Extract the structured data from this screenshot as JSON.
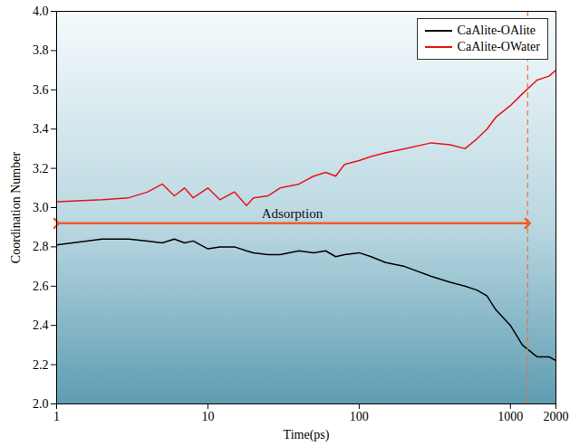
{
  "chart_data": {
    "type": "line",
    "x_label": "Time(ps)",
    "y_label": "Coordination Number",
    "log": "x",
    "xlim": [
      1,
      2000
    ],
    "xticks": [
      1,
      10,
      100,
      1000,
      2000
    ],
    "ylim": [
      2,
      4
    ],
    "yticks": [
      {
        "value": 2,
        "label": "2.0"
      },
      {
        "value": 2.2,
        "label": "2.2"
      },
      {
        "value": 2.4,
        "label": "2.4"
      },
      {
        "value": 2.6,
        "label": "2.6"
      },
      {
        "value": 2.8,
        "label": "2.8"
      },
      {
        "value": 3,
        "label": "3.0"
      },
      {
        "value": 3.2,
        "label": "3.2"
      },
      {
        "value": 3.4,
        "label": "3.4"
      },
      {
        "value": 3.6,
        "label": "3.6"
      },
      {
        "value": 3.8,
        "label": "3.8"
      },
      {
        "value": 4,
        "label": "4.0"
      }
    ],
    "legend": "top-right",
    "x": [
      1,
      2,
      3,
      4,
      5,
      6,
      7,
      8,
      10,
      12,
      15,
      18,
      20,
      25,
      30,
      40,
      50,
      60,
      70,
      80,
      100,
      120,
      150,
      200,
      300,
      400,
      500,
      600,
      700,
      800,
      1000,
      1200,
      1500,
      1800,
      2000
    ],
    "series": [
      {
        "name": "CaAlite-OAlite",
        "color": "#000000",
        "values": [
          2.81,
          2.84,
          2.84,
          2.83,
          2.82,
          2.84,
          2.82,
          2.83,
          2.79,
          2.8,
          2.8,
          2.78,
          2.77,
          2.76,
          2.76,
          2.78,
          2.77,
          2.78,
          2.75,
          2.76,
          2.77,
          2.75,
          2.72,
          2.7,
          2.65,
          2.62,
          2.6,
          2.58,
          2.55,
          2.48,
          2.4,
          2.3,
          2.24,
          2.24,
          2.22
        ]
      },
      {
        "name": "CaAlite-OWater",
        "color": "#e8141c",
        "values": [
          3.03,
          3.04,
          3.05,
          3.08,
          3.12,
          3.06,
          3.1,
          3.05,
          3.1,
          3.04,
          3.08,
          3.01,
          3.05,
          3.06,
          3.1,
          3.12,
          3.16,
          3.18,
          3.16,
          3.22,
          3.24,
          3.26,
          3.28,
          3.3,
          3.33,
          3.32,
          3.3,
          3.35,
          3.4,
          3.46,
          3.52,
          3.58,
          3.65,
          3.67,
          3.7
        ]
      }
    ],
    "annotations": [
      {
        "text": "Adsorption",
        "x": [
          1,
          1300
        ],
        "y": 2.92,
        "color": "#f05a28"
      }
    ],
    "reference_line": {
      "x": 1300,
      "color": "#f07030",
      "line_style": "dashed"
    }
  }
}
